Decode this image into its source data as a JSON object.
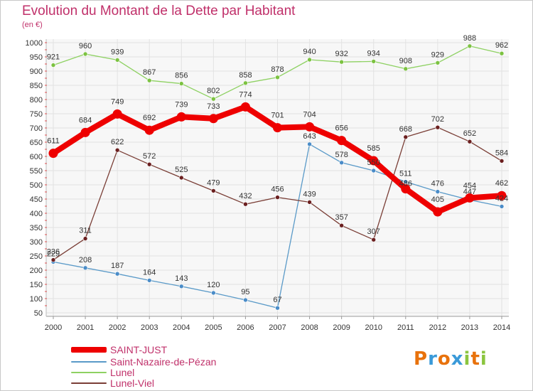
{
  "header": {
    "title": "Evolution du Montant de la Dette par Habitant",
    "subtitle": "(en €)"
  },
  "logo": {
    "letters": [
      "P",
      "r",
      "o",
      "x",
      "i",
      "t",
      "i"
    ],
    "colors": [
      "#e8720c",
      "#3a9ad9",
      "#e8720c",
      "#3a9ad9",
      "#8bc53f",
      "#e8720c",
      "#8bc53f"
    ]
  },
  "chart_data": {
    "type": "line",
    "title": "Evolution du Montant de la Dette par Habitant",
    "subtitle": "(en €)",
    "xlabel": "",
    "ylabel": "",
    "x": [
      "2000",
      "2001",
      "2002",
      "2003",
      "2004",
      "2005",
      "2006",
      "2007",
      "2008",
      "2009",
      "2010",
      "2011",
      "2012",
      "2013",
      "2014"
    ],
    "ylim": [
      50,
      1000
    ],
    "yticks": [
      50,
      100,
      150,
      200,
      250,
      300,
      350,
      400,
      450,
      500,
      550,
      600,
      650,
      700,
      750,
      800,
      850,
      900,
      950,
      1000
    ],
    "grid": true,
    "legend_position": "bottom-left",
    "series": [
      {
        "name": "SAINT-JUST",
        "color": "#ee0000",
        "emphasis": true,
        "values": [
          611,
          684,
          749,
          692,
          739,
          733,
          774,
          701,
          704,
          656,
          585,
          486,
          405,
          454,
          462
        ],
        "labels": [
          "611",
          "684",
          "749",
          "692",
          "739",
          "733",
          "774",
          "701",
          "704",
          "656",
          "585",
          "",
          "405",
          "454",
          "462"
        ]
      },
      {
        "name": "Saint-Nazaire-de-Pézan",
        "color": "#5a9ac8",
        "dot": "#4a8cc8",
        "values": [
          229,
          208,
          187,
          164,
          143,
          120,
          95,
          67,
          643,
          578,
          550,
          511,
          476,
          447,
          424
        ],
        "labels": [
          "229",
          "208",
          "187",
          "164",
          "143",
          "120",
          "95",
          "67",
          "643",
          "578",
          "550",
          "511",
          "476",
          "447",
          "424"
        ]
      },
      {
        "name": "Lunel",
        "color": "#8ed162",
        "dot": "#7cc241",
        "values": [
          921,
          960,
          939,
          867,
          856,
          802,
          858,
          878,
          940,
          932,
          934,
          908,
          929,
          988,
          962
        ],
        "labels": [
          "921",
          "960",
          "939",
          "867",
          "856",
          "802",
          "858",
          "878",
          "940",
          "932",
          "934",
          "908",
          "929",
          "988",
          "962"
        ]
      },
      {
        "name": "Lunel-Viel",
        "color": "#7a3e36",
        "dot": "#6b1f1f",
        "values": [
          236,
          311,
          622,
          572,
          525,
          479,
          432,
          456,
          439,
          357,
          307,
          668,
          702,
          652,
          584
        ],
        "labels": [
          "236",
          "311",
          "622",
          "572",
          "525",
          "479",
          "432",
          "456",
          "439",
          "357",
          "307",
          "668",
          "702",
          "652",
          "584"
        ]
      }
    ],
    "extra_labels": [
      {
        "x": "2011",
        "text": "486"
      }
    ]
  }
}
